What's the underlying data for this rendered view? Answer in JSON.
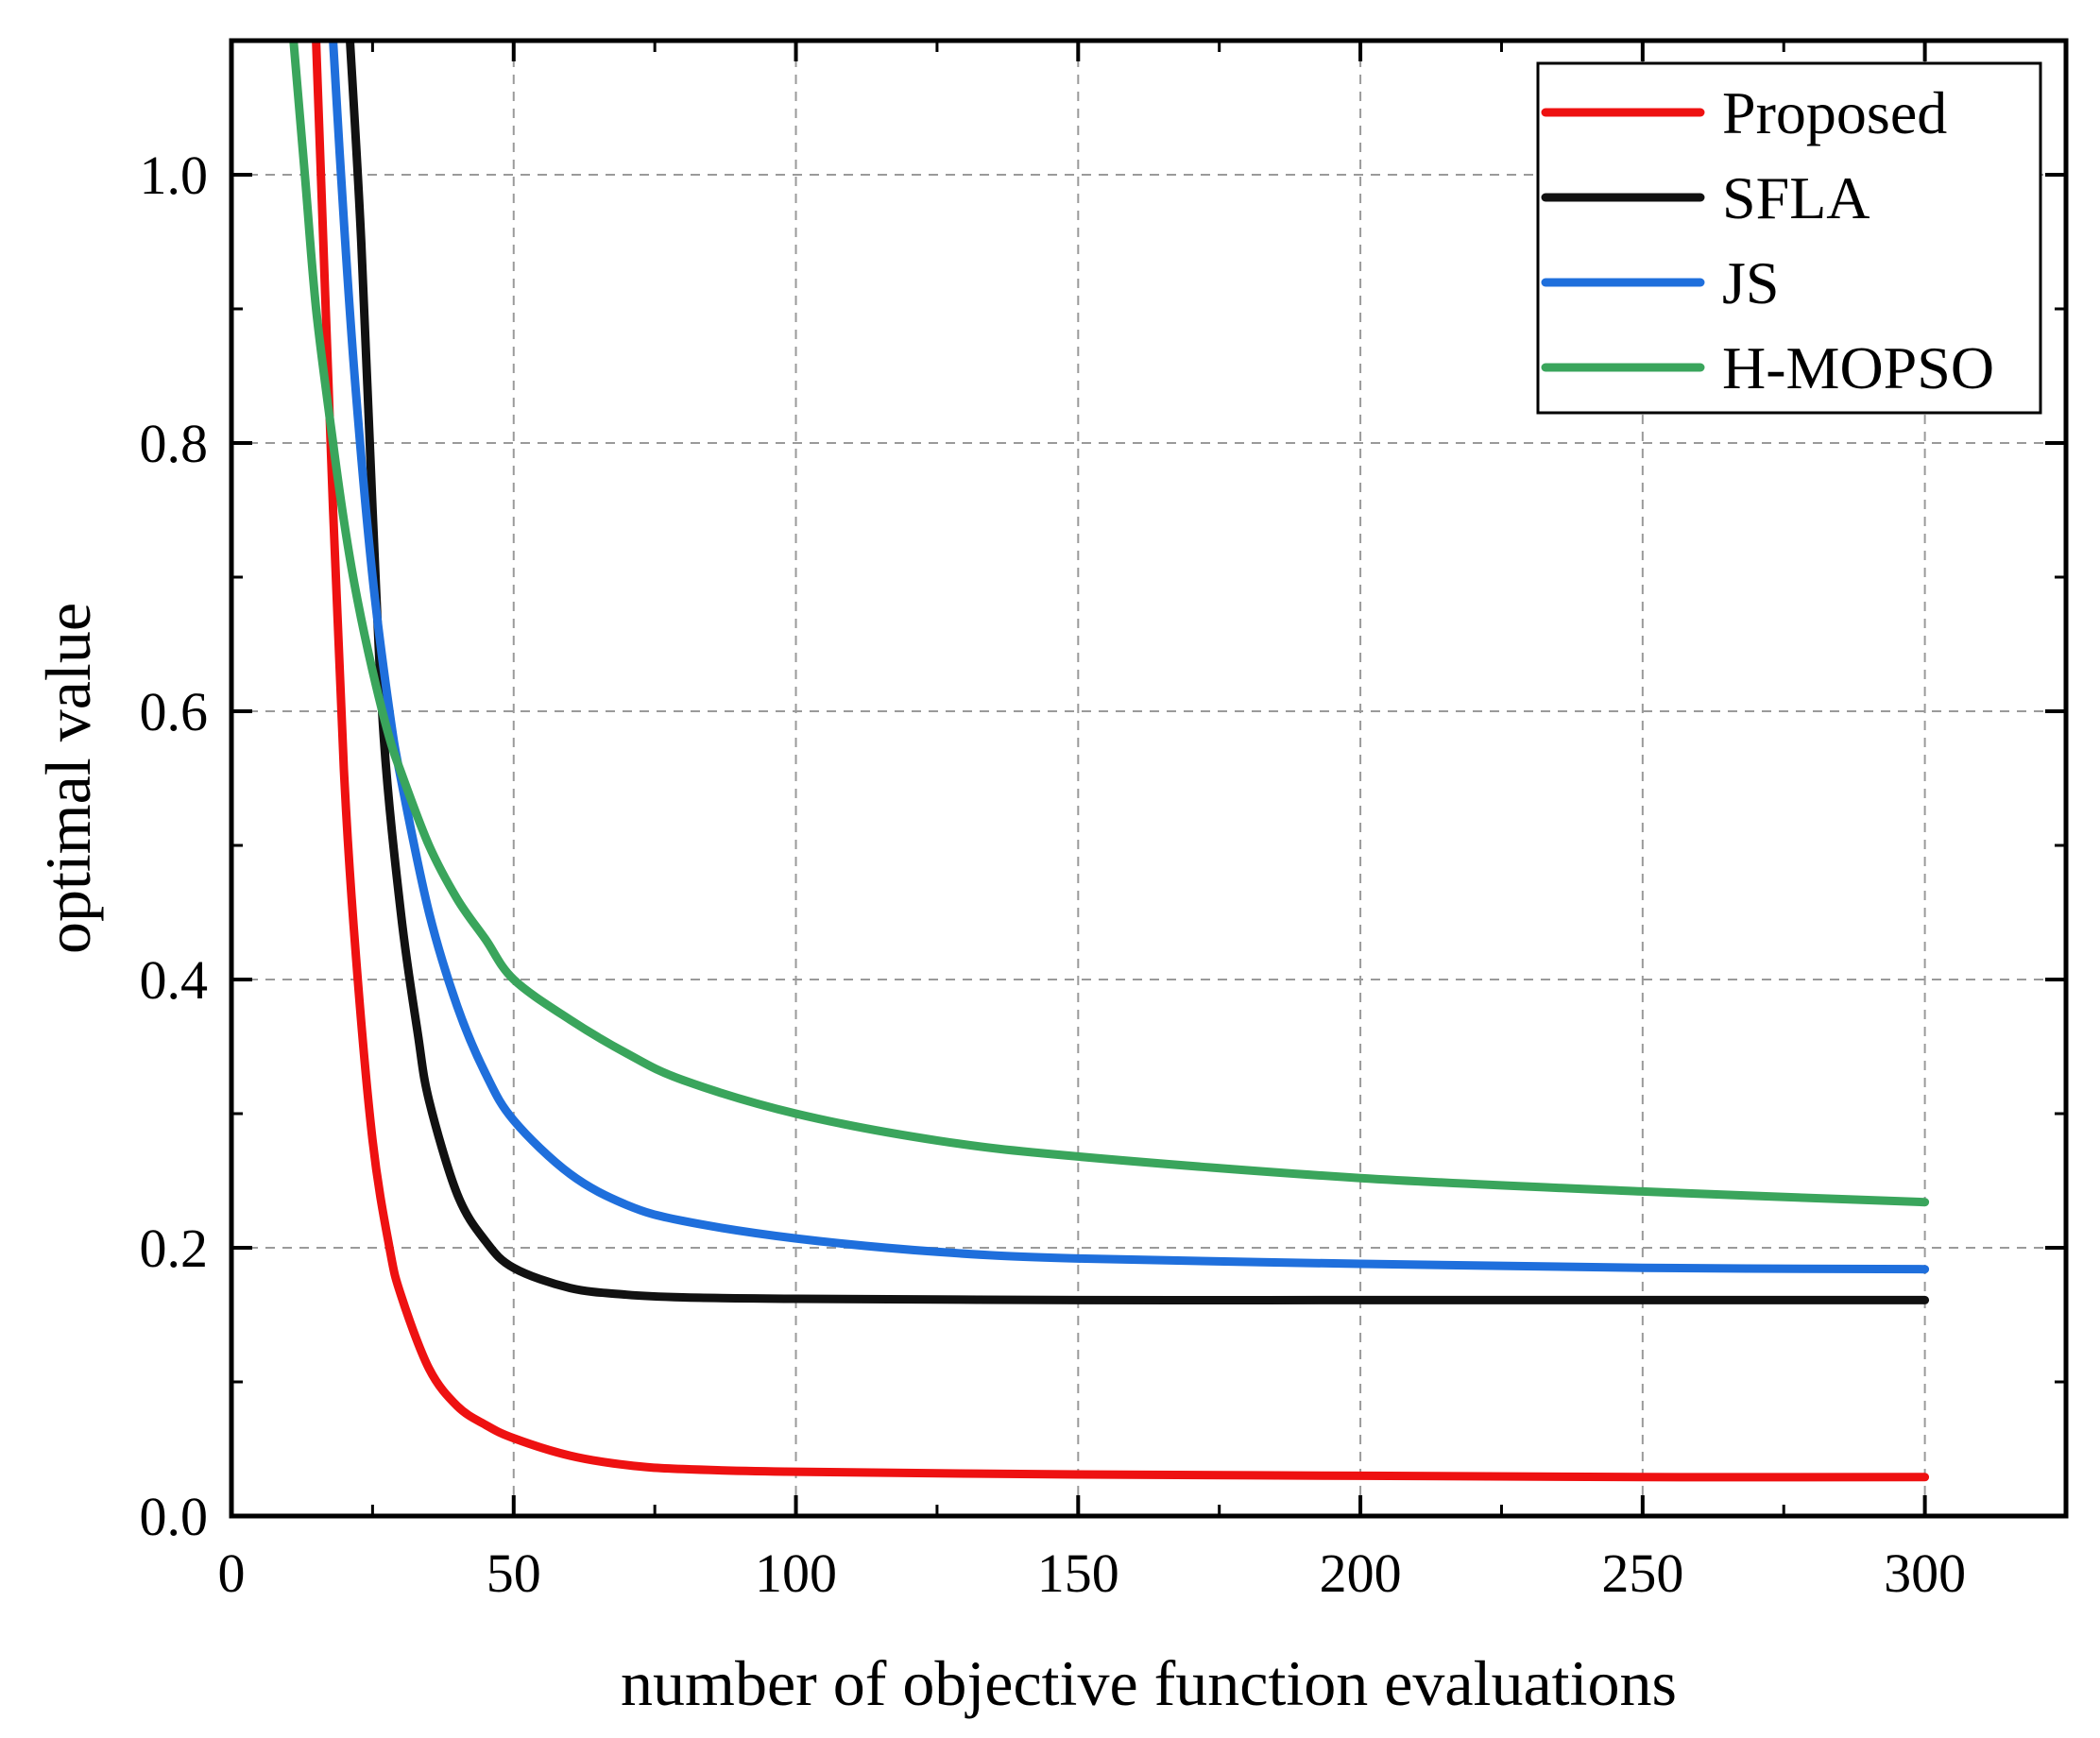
{
  "chart_data": {
    "type": "line",
    "title": "",
    "xlabel": "number of objective function evaluations",
    "ylabel": "optimal value",
    "xlim": [
      0,
      325
    ],
    "ylim": [
      0,
      1.1
    ],
    "xticks": [
      0,
      50,
      100,
      150,
      200,
      250,
      300
    ],
    "xtick_labels": [
      "0",
      "50",
      "100",
      "150",
      "200",
      "250",
      "300"
    ],
    "yticks": [
      0.0,
      0.2,
      0.4,
      0.6,
      0.8,
      1.0
    ],
    "ytick_labels": [
      "0.0",
      "0.2",
      "0.4",
      "0.6",
      "0.8",
      "1.0"
    ],
    "grid": true,
    "legend_position": "top-right",
    "series": [
      {
        "name": "Proposed",
        "color": "#ee1111",
        "x": [
          15,
          18,
          20,
          22,
          25,
          28,
          30,
          35,
          40,
          45,
          50,
          60,
          70,
          80,
          100,
          150,
          200,
          250,
          300
        ],
        "y": [
          1.1,
          0.75,
          0.55,
          0.42,
          0.28,
          0.2,
          0.165,
          0.11,
          0.082,
          0.068,
          0.058,
          0.045,
          0.038,
          0.035,
          0.033,
          0.031,
          0.03,
          0.029,
          0.029
        ]
      },
      {
        "name": "SFLA",
        "color": "#111111",
        "x": [
          21,
          23,
          25,
          27,
          30,
          33,
          35,
          40,
          45,
          50,
          60,
          70,
          80,
          100,
          150,
          200,
          250,
          300
        ],
        "y": [
          1.1,
          0.95,
          0.75,
          0.58,
          0.45,
          0.36,
          0.31,
          0.24,
          0.205,
          0.185,
          0.17,
          0.165,
          0.163,
          0.162,
          0.161,
          0.161,
          0.161,
          0.161
        ]
      },
      {
        "name": "JS",
        "color": "#1f6fdc",
        "x": [
          18,
          20,
          22,
          25,
          28,
          30,
          35,
          40,
          45,
          50,
          60,
          70,
          80,
          100,
          125,
          150,
          200,
          250,
          300
        ],
        "y": [
          1.1,
          0.96,
          0.84,
          0.7,
          0.6,
          0.55,
          0.45,
          0.38,
          0.33,
          0.295,
          0.255,
          0.232,
          0.22,
          0.207,
          0.197,
          0.192,
          0.188,
          0.185,
          0.184
        ]
      },
      {
        "name": "H-MOPSO",
        "color": "#3aa55c",
        "x": [
          11,
          13,
          15,
          18,
          20,
          22,
          25,
          28,
          30,
          35,
          40,
          45,
          50,
          60,
          70,
          80,
          100,
          125,
          150,
          200,
          250,
          300
        ],
        "y": [
          1.1,
          1.0,
          0.9,
          0.8,
          0.74,
          0.69,
          0.63,
          0.58,
          0.555,
          0.5,
          0.46,
          0.43,
          0.4,
          0.37,
          0.345,
          0.325,
          0.3,
          0.28,
          0.268,
          0.252,
          0.242,
          0.234
        ]
      }
    ]
  }
}
